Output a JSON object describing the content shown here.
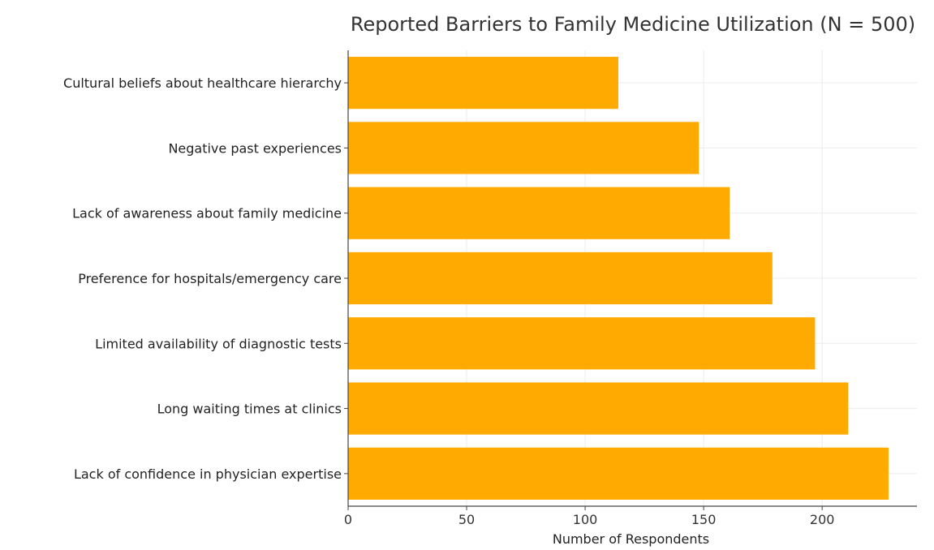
{
  "chart_data": {
    "type": "bar",
    "orientation": "horizontal",
    "title": "Reported Barriers to Family Medicine Utilization (N = 500)",
    "xlabel": "Number of Respondents",
    "ylabel": "",
    "categories": [
      "Cultural beliefs about healthcare hierarchy",
      "Negative past experiences",
      "Lack of awareness about family medicine",
      "Preference for hospitals/emergency care",
      "Limited availability of diagnostic tests",
      "Long waiting times at clinics",
      "Lack of confidence in physician expertise"
    ],
    "values": [
      114,
      148,
      161,
      179,
      197,
      211,
      228
    ],
    "xticks": [
      0,
      50,
      100,
      150,
      200
    ],
    "xlim": [
      0,
      240
    ],
    "grid": true,
    "bar_color": "#FFAA00"
  }
}
